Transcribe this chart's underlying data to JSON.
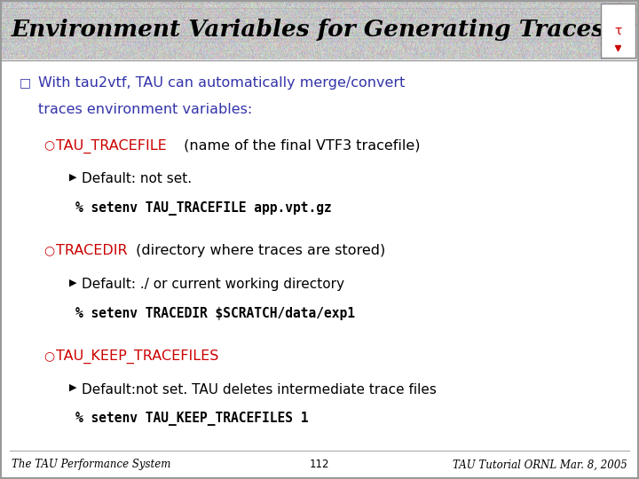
{
  "title": "Environment Variables for Generating Traces",
  "slide_bg": "#ffffff",
  "title_bg": "#c8c8d8",
  "bullet_color": "#3333aa",
  "red_color": "#cc0000",
  "black_color": "#000000",
  "footer_left": "The TAU Performance System",
  "footer_center": "112",
  "footer_right": "TAU Tutorial ORNL Mar. 8, 2005"
}
